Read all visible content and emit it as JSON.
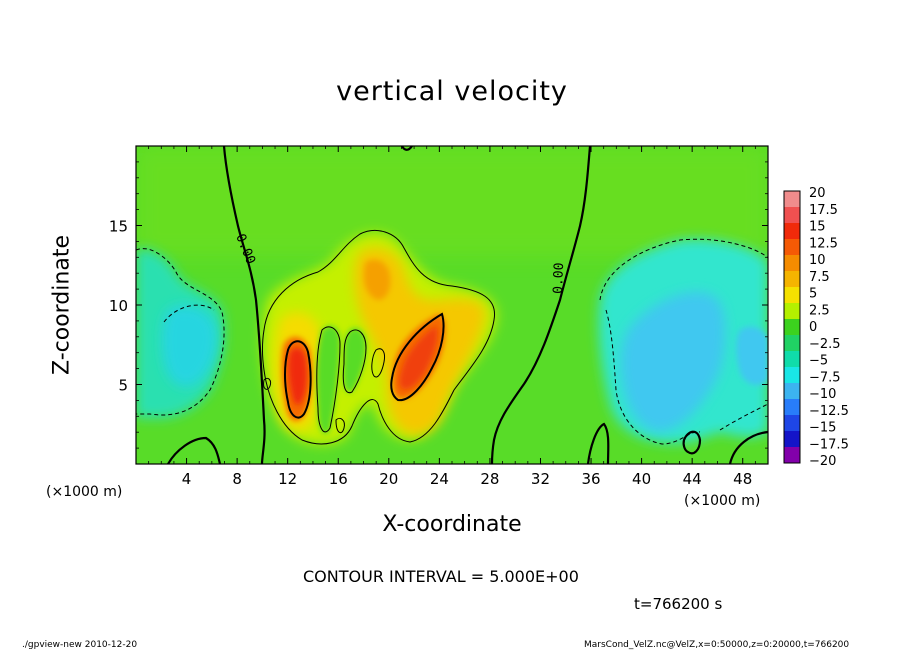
{
  "chart_data": {
    "type": "heatmap",
    "title": "vertical velocity",
    "xlabel": "X-coordinate",
    "ylabel": "Z-coordinate",
    "x_unit_label": "(×1000 m)",
    "xlim": [
      0,
      50
    ],
    "ylim": [
      0,
      20
    ],
    "x_ticks": [
      "4",
      "8",
      "12",
      "16",
      "20",
      "24",
      "28",
      "32",
      "36",
      "40",
      "44",
      "48"
    ],
    "x_tick_values": [
      4,
      8,
      12,
      16,
      20,
      24,
      28,
      32,
      36,
      40,
      44,
      48
    ],
    "y_ticks": [
      "5",
      "10",
      "15"
    ],
    "y_tick_values": [
      5,
      10,
      15
    ],
    "contour_labels": [
      "0.00",
      "0.00"
    ],
    "colorbar": {
      "labels": [
        "20",
        "17.5",
        "15",
        "12.5",
        "10",
        "7.5",
        "5",
        "2.5",
        "0",
        "−2.5",
        "−5",
        "−7.5",
        "−10",
        "−12.5",
        "−15",
        "−17.5",
        "−20"
      ],
      "values": [
        20,
        17.5,
        15,
        12.5,
        10,
        7.5,
        5,
        2.5,
        0,
        -2.5,
        -5,
        -7.5,
        -10,
        -12.5,
        -15,
        -17.5,
        -20
      ],
      "colors": [
        "#f08c8c",
        "#f05050",
        "#f02a0a",
        "#f55a05",
        "#f58c00",
        "#f5b400",
        "#f5e100",
        "#b4f000",
        "#3cd21e",
        "#20d264",
        "#10dcaa",
        "#19e6e6",
        "#3cb4f0",
        "#287dfa",
        "#1e46e6",
        "#1414c8",
        "#8200aa"
      ]
    },
    "contour_interval": "CONTOUR INTERVAL = 5.000E+00",
    "features": [
      {
        "name": "updraft core",
        "x": 12.5,
        "z": 5.5,
        "w": 12
      },
      {
        "name": "updraft core",
        "x": 21.5,
        "z": 7.0,
        "w": 12
      },
      {
        "name": "updraft",
        "x": 19.5,
        "z": 11.5,
        "w": 7
      },
      {
        "name": "downdraft",
        "x": 4.5,
        "z": 7.0,
        "w": -5
      },
      {
        "name": "downdraft",
        "x": 43.0,
        "z": 9.0,
        "w": -7
      }
    ]
  },
  "annotations": {
    "contour_interval": "CONTOUR INTERVAL = 5.000E+00",
    "time": "t=766200  s",
    "footer_left": "./gpview-new   2010-12-20",
    "footer_right": "MarsCond_VelZ.nc@VelZ,x=0:50000,z=0:20000,t=766200"
  }
}
